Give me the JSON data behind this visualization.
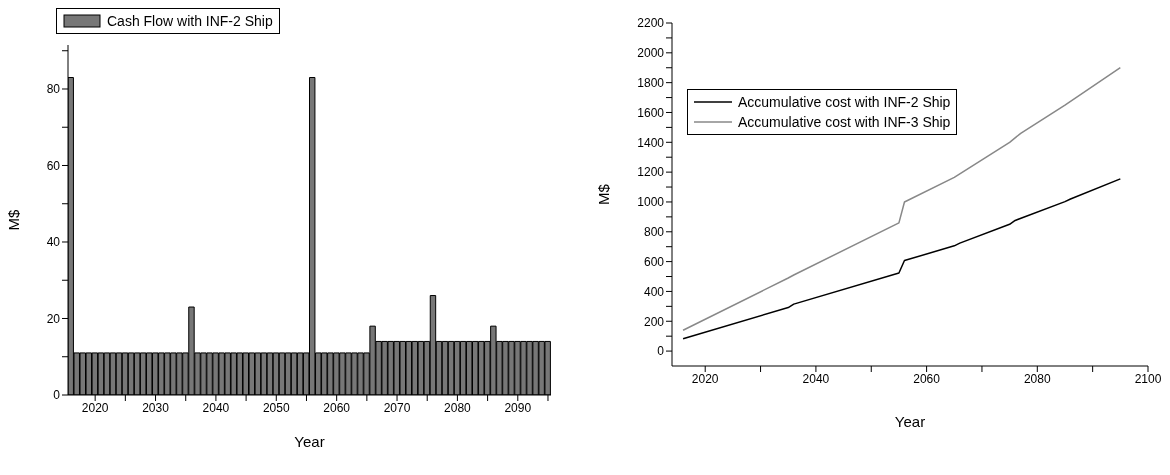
{
  "chart_data": [
    {
      "type": "bar",
      "xlabel": "Year",
      "ylabel": "M$",
      "x": [
        2016,
        2017,
        2018,
        2019,
        2020,
        2021,
        2022,
        2023,
        2024,
        2025,
        2026,
        2027,
        2028,
        2029,
        2030,
        2031,
        2032,
        2033,
        2034,
        2035,
        2036,
        2037,
        2038,
        2039,
        2040,
        2041,
        2042,
        2043,
        2044,
        2045,
        2046,
        2047,
        2048,
        2049,
        2050,
        2051,
        2052,
        2053,
        2054,
        2055,
        2056,
        2057,
        2058,
        2059,
        2060,
        2061,
        2062,
        2063,
        2064,
        2065,
        2066,
        2067,
        2068,
        2069,
        2070,
        2071,
        2072,
        2073,
        2074,
        2075,
        2076,
        2077,
        2078,
        2079,
        2080,
        2081,
        2082,
        2083,
        2084,
        2085,
        2086,
        2087,
        2088,
        2089,
        2090,
        2091,
        2092,
        2093,
        2094,
        2095
      ],
      "series": [
        {
          "name": "Cash Flow with INF-2 Ship",
          "color": "#777777",
          "values": [
            83,
            11,
            11,
            11,
            11,
            11,
            11,
            11,
            11,
            11,
            11,
            11,
            11,
            11,
            11,
            11,
            11,
            11,
            11,
            11,
            23,
            11,
            11,
            11,
            11,
            11,
            11,
            11,
            11,
            11,
            11,
            11,
            11,
            11,
            11,
            11,
            11,
            11,
            11,
            11,
            83,
            11,
            11,
            11,
            11,
            11,
            11,
            11,
            11,
            11,
            18,
            14,
            14,
            14,
            14,
            14,
            14,
            14,
            14,
            14,
            26,
            14,
            14,
            14,
            14,
            14,
            14,
            14,
            14,
            14,
            18,
            14,
            14,
            14,
            14,
            14,
            14,
            14,
            14,
            14
          ]
        }
      ],
      "xlim": [
        2015.5,
        2095.5
      ],
      "xticks": [
        2020,
        {
          "value": 2025,
          "label": null
        },
        2030,
        {
          "value": 2035,
          "label": null
        },
        2040,
        {
          "value": 2045,
          "label": null
        },
        2050,
        {
          "value": 2055,
          "label": null
        },
        2060,
        {
          "value": 2065,
          "label": null
        },
        2070,
        {
          "value": 2075,
          "label": null
        },
        2080,
        {
          "value": 2085,
          "label": null
        },
        2090,
        {
          "value": 2095,
          "label": null
        }
      ],
      "ylim": [
        0,
        91.5
      ],
      "yticks": [
        0,
        {
          "value": 10,
          "label": null
        },
        20,
        {
          "value": 30,
          "label": null
        },
        40,
        {
          "value": 50,
          "label": null
        },
        60,
        {
          "value": 70,
          "label": null
        },
        80,
        {
          "value": 90,
          "label": null
        }
      ],
      "grid": false,
      "legend": "top left"
    },
    {
      "type": "line",
      "xlabel": "Year",
      "ylabel": "M$",
      "series": [
        {
          "name": "Accumulative cost with INF-2 Ship",
          "color": "#000000",
          "x": [
            2016,
            2035,
            2036,
            2055,
            2056,
            2065,
            2066,
            2075,
            2076,
            2085,
            2086,
            2095
          ],
          "values": [
            83,
            292,
            315,
            524,
            607,
            706,
            724,
            850,
            876,
            1002,
            1020,
            1155
          ]
        },
        {
          "name": "Accumulative cost with INF-3 Ship",
          "color": "#888888",
          "x": [
            2016,
            2035,
            2036,
            2055,
            2056,
            2065,
            2075,
            2077,
            2085,
            2095
          ],
          "values": [
            140,
            490,
            510,
            860,
            1000,
            1165,
            1400,
            1460,
            1650,
            1900
          ]
        }
      ],
      "xlim": [
        2014,
        2100
      ],
      "xticks": [
        2020,
        {
          "value": 2030,
          "label": null
        },
        2040,
        {
          "value": 2050,
          "label": null
        },
        2060,
        {
          "value": 2070,
          "label": null
        },
        2080,
        {
          "value": 2090,
          "label": null
        },
        2100
      ],
      "ylim": [
        -100,
        2200
      ],
      "yticks": [
        0,
        {
          "value": 100,
          "label": null
        },
        200,
        {
          "value": 300,
          "label": null
        },
        400,
        {
          "value": 500,
          "label": null
        },
        600,
        {
          "value": 700,
          "label": null
        },
        800,
        {
          "value": 900,
          "label": null
        },
        1000,
        {
          "value": 1100,
          "label": null
        },
        1200,
        {
          "value": 1300,
          "label": null
        },
        1400,
        {
          "value": 1500,
          "label": null
        },
        1600,
        {
          "value": 1700,
          "label": null
        },
        1800,
        {
          "value": 1900,
          "label": null
        },
        2000,
        {
          "value": 2100,
          "label": null
        },
        2200
      ],
      "grid": false,
      "legend": "top left",
      "marker": "none",
      "line_style": "solid"
    }
  ]
}
